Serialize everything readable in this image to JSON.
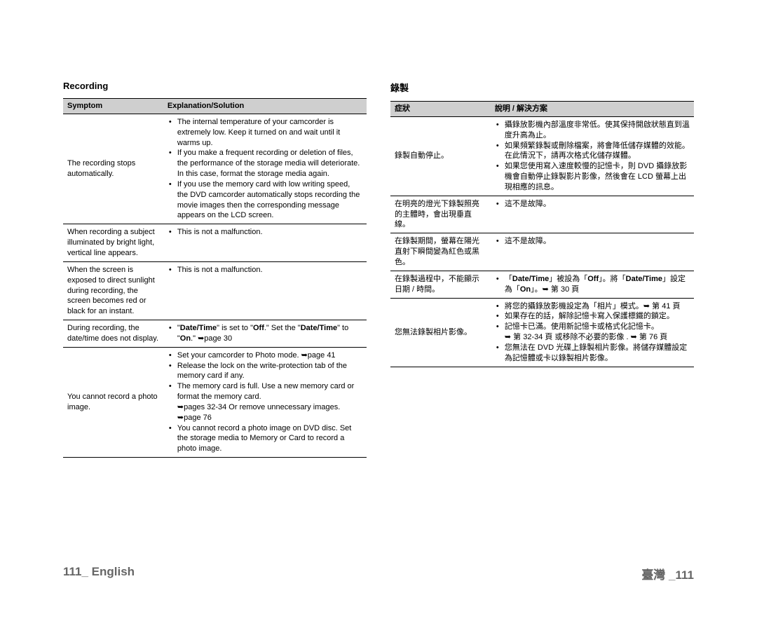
{
  "left": {
    "section_title": "Recording",
    "headers": {
      "symptom": "Symptom",
      "solution": "Explanation/Solution"
    },
    "rows": [
      {
        "symptom": "The recording stops automatically.",
        "bullets": [
          "The internal temperature of your camcorder is extremely low. Keep it turned on and wait until it warms up.",
          "If you make a frequent recording or deletion of files, the performance of the storage media will deteriorate. In this case, format the storage media again.",
          "If you use the memory card with low writing speed, the DVD camcorder automatically stops recording the movie images then the corresponding message appears on the LCD screen."
        ]
      },
      {
        "symptom": "When recording a subject illuminated by bright light, vertical line appears.",
        "bullets": [
          "This is not a malfunction."
        ]
      },
      {
        "symptom": "When the screen is exposed to direct sunlight during recording, the screen becomes red or black for an instant.",
        "bullets": [
          "This is not a malfunction."
        ]
      },
      {
        "symptom": "During recording, the date/time does not display.",
        "bullets_html": [
          "\"<b>Date/Time</b>\" is set to \"<b>Off</b>.\" Set the \"<b>Date/Time</b>\" to \"<b>On</b>.\" ➥page 30"
        ]
      },
      {
        "symptom": "You cannot record a photo image.",
        "bullets": [
          "Set your camcorder to Photo mode. ➥page 41",
          "Release the lock on the write-protection tab of the memory card if any.",
          "The memory card is full. Use a new memory card or format the memory card.\n➥pages 32-34 Or remove unnecessary images. ➥page 76",
          "You cannot record a photo image on DVD disc. Set the storage media to Memory or Card to record a photo image."
        ]
      }
    ]
  },
  "right": {
    "section_title": "錄製",
    "headers": {
      "symptom": "症狀",
      "solution": "說明 / 解決方案"
    },
    "rows": [
      {
        "symptom": "錄製自動停止。",
        "bullets": [
          "攝錄放影機內部溫度非常低。使其保持開啟狀態直到溫度升高為止。",
          "如果頻繁錄製或刪除檔案，將會降低儲存媒體的效能。在此情況下，請再次格式化儲存媒體。",
          "如果您使用寫入速度較慢的記憶卡，則 DVD 攝錄放影機會自動停止錄製影片影像，然後會在 LCD 螢幕上出現相應的訊息。"
        ]
      },
      {
        "symptom": "在明亮的燈光下錄製照亮的主體時，會出現垂直線。",
        "bullets": [
          "這不是故障。"
        ]
      },
      {
        "symptom": "在錄製期間，螢幕在陽光直射下瞬間變為紅色或黑色。",
        "bullets": [
          "這不是故障。"
        ]
      },
      {
        "symptom": "在錄製過程中，不能顯示日期 / 時間。",
        "bullets_html": [
          "「<b>Date/Time</b>」被設為「<b>Off</b>」。將「<b>Date/Time</b>」設定為「<b>On</b>」。➥ 第 30 頁"
        ]
      },
      {
        "symptom": "您無法錄製相片影像。",
        "bullets": [
          "將您的攝錄放影機設定為「相片」模式。➥ 第 41 頁",
          "如果存在的話，解除記憶卡寫入保護標鐵的鎖定。",
          "記憶卡已滿。使用新記憶卡或格式化記憶卡。\n➥ 第 32-34 頁 或移除不必要的影像 . ➥ 第 76 頁",
          "您無法在 DVD 光碟上錄製相片影像。將儲存媒體設定為記憶體或卡以錄製相片影像。"
        ]
      }
    ]
  },
  "footer": {
    "left_number": "111_",
    "left_label": " English",
    "right_label": "臺灣 _",
    "right_number": "111"
  }
}
